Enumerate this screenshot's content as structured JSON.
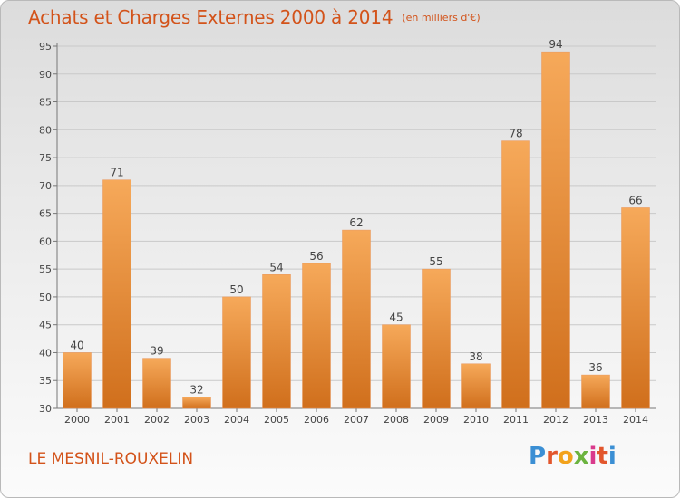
{
  "title": "Achats et Charges Externes 2000 à 2014",
  "unit": "(en milliers d'€)",
  "commune": "LE MESNIL-ROUXELIN",
  "logo": {
    "letters": [
      "P",
      "r",
      "o",
      "x",
      "i",
      "t",
      "i"
    ],
    "colors": [
      "#3b8fd4",
      "#e2562c",
      "#f2a21c",
      "#6bb33e",
      "#d93a8c",
      "#e2562c",
      "#3b8fd4"
    ]
  },
  "colors": {
    "title": "#d3531a",
    "bar_top": "#f6a95a",
    "bar_bottom": "#d06f1c",
    "grid": "#c9c9c9"
  },
  "chart_data": {
    "type": "bar",
    "categories": [
      "2000",
      "2001",
      "2002",
      "2003",
      "2004",
      "2005",
      "2006",
      "2007",
      "2008",
      "2009",
      "2010",
      "2011",
      "2012",
      "2013",
      "2014"
    ],
    "values": [
      40,
      71,
      39,
      32,
      50,
      54,
      56,
      62,
      45,
      55,
      38,
      78,
      94,
      36,
      66
    ],
    "data_labels": [
      "40",
      "71",
      "39",
      "32",
      "50",
      "54",
      "56",
      "62",
      "45",
      "55",
      "38",
      "78",
      "94",
      "36",
      "66"
    ],
    "y_ticks": [
      30,
      35,
      40,
      45,
      50,
      55,
      60,
      65,
      70,
      75,
      80,
      85,
      90,
      95
    ],
    "ylim": [
      30,
      95
    ],
    "grid": true,
    "xlabel": "",
    "ylabel": ""
  }
}
